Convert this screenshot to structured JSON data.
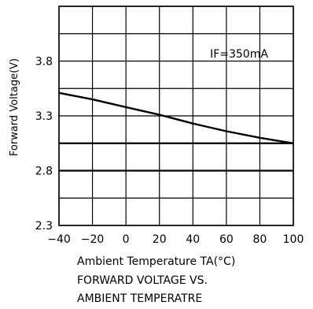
{
  "chart_data": {
    "type": "line",
    "title": "",
    "caption_lines": [
      "FORWARD VOLTAGE VS.",
      "AMBIENT TEMPERATRE"
    ],
    "xlabel": "Ambient Temperature TA(°C)",
    "ylabel": "Forward Voltage(V)",
    "annotation": "IF=350mA",
    "xlim": [
      -40,
      100
    ],
    "ylim": [
      2.3,
      4.3
    ],
    "xticks": [
      -40,
      -20,
      0,
      20,
      40,
      60,
      80,
      100
    ],
    "xtick_labels": [
      "−40",
      "−20",
      "0",
      "20",
      "40",
      "60",
      "80",
      "100"
    ],
    "yticks": [
      2.3,
      2.8,
      3.3,
      3.8
    ],
    "ytick_labels": [
      "2.3",
      "2.8",
      "3.3",
      "3.8"
    ],
    "grid": true,
    "series": [
      {
        "x": [
          -40,
          -20,
          0,
          20,
          40,
          60,
          80,
          100
        ],
        "y": [
          3.51,
          3.45,
          3.38,
          3.31,
          3.23,
          3.16,
          3.1,
          3.05
        ]
      }
    ],
    "reference_lines": [
      3.05,
      2.8
    ]
  }
}
